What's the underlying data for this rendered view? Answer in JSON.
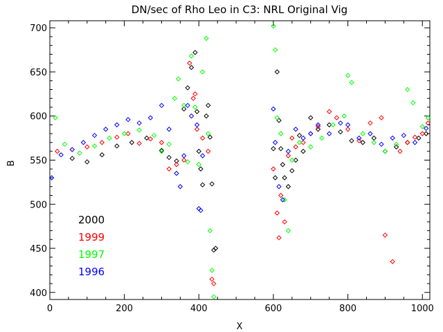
{
  "chart_data": {
    "type": "scatter",
    "title": "DN/sec of Rho Leo in C3: NRL Original Vig",
    "xlabel": "X",
    "ylabel": "B",
    "xlim": [
      0,
      1020
    ],
    "ylim": [
      392,
      708
    ],
    "x_ticks": [
      0,
      200,
      400,
      600,
      800,
      1000
    ],
    "y_ticks": [
      400,
      450,
      500,
      550,
      600,
      650,
      700
    ],
    "grid": false,
    "legend_position": "bottom-left",
    "marker": "diamond",
    "series": [
      {
        "name": "2000",
        "color": "#000000",
        "points": [
          [
            60,
            552
          ],
          [
            100,
            548
          ],
          [
            140,
            556
          ],
          [
            180,
            566
          ],
          [
            220,
            570
          ],
          [
            260,
            575
          ],
          [
            300,
            561
          ],
          [
            320,
            553
          ],
          [
            340,
            549
          ],
          [
            360,
            608
          ],
          [
            370,
            632
          ],
          [
            380,
            655
          ],
          [
            390,
            672
          ],
          [
            395,
            605
          ],
          [
            400,
            560
          ],
          [
            405,
            540
          ],
          [
            410,
            522
          ],
          [
            420,
            600
          ],
          [
            425,
            612
          ],
          [
            430,
            576
          ],
          [
            435,
            523
          ],
          [
            440,
            448
          ],
          [
            445,
            450
          ],
          [
            600,
            563
          ],
          [
            605,
            530
          ],
          [
            610,
            650
          ],
          [
            615,
            595
          ],
          [
            620,
            563
          ],
          [
            625,
            545
          ],
          [
            630,
            530
          ],
          [
            640,
            520
          ],
          [
            650,
            538
          ],
          [
            660,
            550
          ],
          [
            670,
            578
          ],
          [
            680,
            560
          ],
          [
            700,
            598
          ],
          [
            720,
            585
          ],
          [
            750,
            590
          ],
          [
            780,
            582
          ],
          [
            810,
            572
          ],
          [
            840,
            570
          ],
          [
            870,
            575
          ],
          [
            900,
            560
          ],
          [
            930,
            565
          ],
          [
            960,
            570
          ],
          [
            990,
            575
          ],
          [
            1010,
            580
          ]
        ]
      },
      {
        "name": "1999",
        "color": "#ff0000",
        "points": [
          [
            20,
            560
          ],
          [
            60,
            562
          ],
          [
            100,
            565
          ],
          [
            140,
            570
          ],
          [
            180,
            576
          ],
          [
            210,
            580
          ],
          [
            240,
            569
          ],
          [
            270,
            574
          ],
          [
            300,
            570
          ],
          [
            320,
            540
          ],
          [
            340,
            545
          ],
          [
            360,
            550
          ],
          [
            375,
            660
          ],
          [
            385,
            620
          ],
          [
            390,
            625
          ],
          [
            395,
            585
          ],
          [
            410,
            575
          ],
          [
            425,
            560
          ],
          [
            435,
            415
          ],
          [
            440,
            410
          ],
          [
            600,
            540
          ],
          [
            610,
            490
          ],
          [
            615,
            462
          ],
          [
            620,
            510
          ],
          [
            630,
            480
          ],
          [
            640,
            555
          ],
          [
            650,
            575
          ],
          [
            660,
            565
          ],
          [
            680,
            570
          ],
          [
            700,
            580
          ],
          [
            720,
            588
          ],
          [
            750,
            605
          ],
          [
            770,
            598
          ],
          [
            800,
            585
          ],
          [
            830,
            572
          ],
          [
            860,
            592
          ],
          [
            890,
            598
          ],
          [
            900,
            465
          ],
          [
            920,
            435
          ],
          [
            940,
            560
          ],
          [
            960,
            570
          ],
          [
            980,
            576
          ],
          [
            1000,
            580
          ],
          [
            1015,
            592
          ]
        ]
      },
      {
        "name": "1997",
        "color": "#00ff00",
        "points": [
          [
            15,
            598
          ],
          [
            40,
            568
          ],
          [
            80,
            558
          ],
          [
            120,
            566
          ],
          [
            160,
            575
          ],
          [
            200,
            580
          ],
          [
            240,
            584
          ],
          [
            280,
            578
          ],
          [
            300,
            560
          ],
          [
            320,
            568
          ],
          [
            335,
            620
          ],
          [
            345,
            642
          ],
          [
            360,
            612
          ],
          [
            370,
            548
          ],
          [
            380,
            668
          ],
          [
            390,
            610
          ],
          [
            400,
            545
          ],
          [
            410,
            650
          ],
          [
            420,
            688
          ],
          [
            425,
            580
          ],
          [
            430,
            470
          ],
          [
            435,
            425
          ],
          [
            440,
            395
          ],
          [
            600,
            702
          ],
          [
            605,
            675
          ],
          [
            610,
            598
          ],
          [
            620,
            580
          ],
          [
            630,
            505
          ],
          [
            640,
            470
          ],
          [
            650,
            550
          ],
          [
            670,
            570
          ],
          [
            700,
            565
          ],
          [
            730,
            575
          ],
          [
            760,
            590
          ],
          [
            790,
            600
          ],
          [
            800,
            646
          ],
          [
            810,
            638
          ],
          [
            840,
            580
          ],
          [
            870,
            570
          ],
          [
            900,
            560
          ],
          [
            930,
            568
          ],
          [
            960,
            630
          ],
          [
            975,
            615
          ],
          [
            1000,
            588
          ],
          [
            1015,
            598
          ]
        ]
      },
      {
        "name": "1996",
        "color": "#0000ff",
        "points": [
          [
            5,
            530
          ],
          [
            30,
            556
          ],
          [
            60,
            562
          ],
          [
            90,
            570
          ],
          [
            120,
            578
          ],
          [
            150,
            585
          ],
          [
            180,
            590
          ],
          [
            210,
            596
          ],
          [
            240,
            592
          ],
          [
            270,
            598
          ],
          [
            300,
            612
          ],
          [
            320,
            585
          ],
          [
            340,
            535
          ],
          [
            350,
            520
          ],
          [
            360,
            555
          ],
          [
            370,
            612
          ],
          [
            380,
            600
          ],
          [
            395,
            590
          ],
          [
            400,
            495
          ],
          [
            405,
            493
          ],
          [
            410,
            555
          ],
          [
            600,
            608
          ],
          [
            605,
            570
          ],
          [
            615,
            520
          ],
          [
            625,
            505
          ],
          [
            640,
            560
          ],
          [
            660,
            585
          ],
          [
            680,
            575
          ],
          [
            700,
            580
          ],
          [
            720,
            590
          ],
          [
            750,
            580
          ],
          [
            780,
            592
          ],
          [
            800,
            590
          ],
          [
            830,
            575
          ],
          [
            860,
            580
          ],
          [
            890,
            568
          ],
          [
            920,
            575
          ],
          [
            950,
            578
          ],
          [
            980,
            570
          ],
          [
            1010,
            586
          ]
        ]
      }
    ]
  }
}
